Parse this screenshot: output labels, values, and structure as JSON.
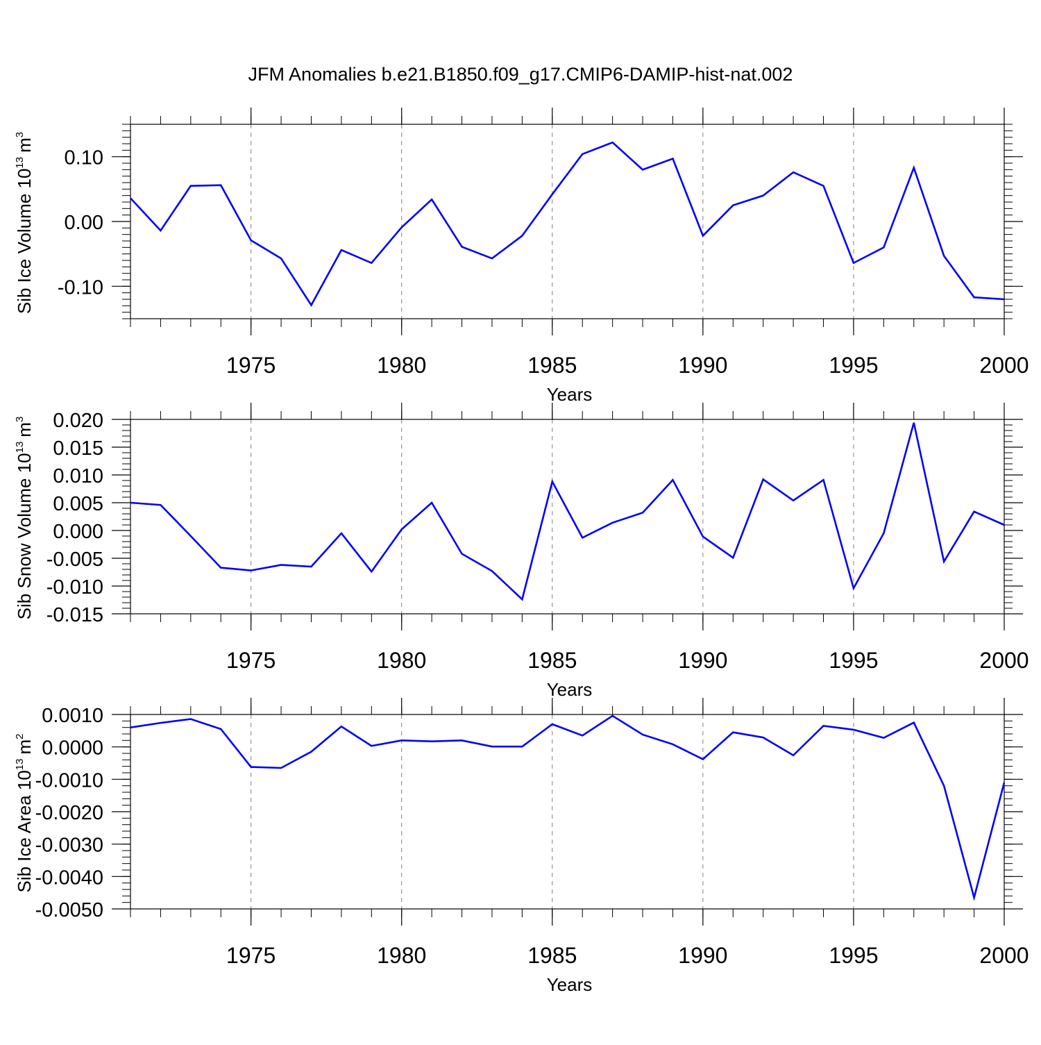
{
  "figure": {
    "title": "JFM Anomalies b.e21.B1850.f09_g17.CMIP6-DAMIP-hist-nat.002"
  },
  "colors": {
    "line": "#0000ff",
    "axis": "#000000",
    "grid": "#808080",
    "background": "#ffffff"
  },
  "chart_data": [
    {
      "type": "line",
      "title": "",
      "xlabel": "Years",
      "ylabel": "Sib Ice Volume 10",
      "ylabel_exponent": "13",
      "ylabel_unit": "m",
      "ylabel_unit_exponent": "3",
      "xlim": [
        1971,
        2000
      ],
      "ylim": [
        -0.15,
        0.15
      ],
      "xticks": [
        1975,
        1980,
        1985,
        1990,
        1995,
        2000
      ],
      "xtick_labels": [
        "1975",
        "1980",
        "1985",
        "1990",
        "1995",
        "2000"
      ],
      "yticks": [
        0.1,
        0.0,
        -0.1
      ],
      "ytick_labels": [
        "0.10",
        "0.00",
        "-0.10"
      ],
      "grid": "vertical dashed at major x ticks",
      "x": [
        1971,
        1972,
        1973,
        1974,
        1975,
        1976,
        1977,
        1978,
        1979,
        1980,
        1981,
        1982,
        1983,
        1984,
        1985,
        1986,
        1987,
        1988,
        1989,
        1990,
        1991,
        1992,
        1993,
        1994,
        1995,
        1996,
        1997,
        1998,
        1999,
        2000
      ],
      "series": [
        {
          "name": "Sib Ice Volume",
          "values": [
            0.036,
            -0.014,
            0.055,
            0.056,
            -0.029,
            -0.057,
            -0.129,
            -0.044,
            -0.064,
            -0.009,
            0.034,
            -0.039,
            -0.057,
            -0.022,
            0.042,
            0.104,
            0.122,
            0.08,
            0.097,
            -0.022,
            0.025,
            0.04,
            0.076,
            0.055,
            -0.064,
            -0.04,
            0.083,
            -0.053,
            -0.117,
            -0.12
          ]
        }
      ]
    },
    {
      "type": "line",
      "title": "",
      "xlabel": "Years",
      "ylabel": "Sib Snow Volume 10",
      "ylabel_exponent": "13",
      "ylabel_unit": "m",
      "ylabel_unit_exponent": "3",
      "xlim": [
        1971,
        2000
      ],
      "ylim": [
        -0.015,
        0.02
      ],
      "xticks": [
        1975,
        1980,
        1985,
        1990,
        1995,
        2000
      ],
      "xtick_labels": [
        "1975",
        "1980",
        "1985",
        "1990",
        "1995",
        "2000"
      ],
      "yticks": [
        0.02,
        0.015,
        0.01,
        0.005,
        0.0,
        -0.005,
        -0.01,
        -0.015
      ],
      "ytick_labels": [
        "0.020",
        "0.015",
        "0.010",
        "0.005",
        "0.000",
        "-0.005",
        "-0.010",
        "-0.015"
      ],
      "grid": "vertical dashed at major x ticks",
      "x": [
        1971,
        1972,
        1973,
        1974,
        1975,
        1976,
        1977,
        1978,
        1979,
        1980,
        1981,
        1982,
        1983,
        1984,
        1985,
        1986,
        1987,
        1988,
        1989,
        1990,
        1991,
        1992,
        1993,
        1994,
        1995,
        1996,
        1997,
        1998,
        1999,
        2000
      ],
      "series": [
        {
          "name": "Sib Snow Volume",
          "values": [
            0.005,
            0.0046,
            -0.001,
            -0.0067,
            -0.0072,
            -0.0062,
            -0.0065,
            -0.0005,
            -0.0074,
            0.0002,
            0.005,
            -0.0042,
            -0.0073,
            -0.0124,
            0.0088,
            -0.0013,
            0.0014,
            0.0032,
            0.0091,
            -0.0011,
            -0.0049,
            0.0092,
            0.0054,
            0.0091,
            -0.0104,
            -0.0005,
            0.0194,
            -0.0056,
            0.0034,
            0.001
          ]
        }
      ]
    },
    {
      "type": "line",
      "title": "",
      "xlabel": "Years",
      "ylabel": "Sib Ice Area 10",
      "ylabel_exponent": "13",
      "ylabel_unit": "m",
      "ylabel_unit_exponent": "2",
      "xlim": [
        1971,
        2000
      ],
      "ylim": [
        -0.005,
        0.001
      ],
      "xticks": [
        1975,
        1980,
        1985,
        1990,
        1995,
        2000
      ],
      "xtick_labels": [
        "1975",
        "1980",
        "1985",
        "1990",
        "1995",
        "2000"
      ],
      "yticks": [
        0.001,
        0.0,
        -0.001,
        -0.002,
        -0.003,
        -0.004,
        -0.005
      ],
      "ytick_labels": [
        "0.0010",
        "0.0000",
        "-0.0010",
        "-0.0020",
        "-0.0030",
        "-0.0040",
        "-0.0050"
      ],
      "grid": "vertical dashed at major x ticks",
      "x": [
        1971,
        1972,
        1973,
        1974,
        1975,
        1976,
        1977,
        1978,
        1979,
        1980,
        1981,
        1982,
        1983,
        1984,
        1985,
        1986,
        1987,
        1988,
        1989,
        1990,
        1991,
        1992,
        1993,
        1994,
        1995,
        1996,
        1997,
        1998,
        1999,
        2000
      ],
      "series": [
        {
          "name": "Sib Ice Area",
          "values": [
            0.0006,
            0.00074,
            0.00086,
            0.00055,
            -0.00062,
            -0.00065,
            -0.00015,
            0.00063,
            3e-05,
            0.0002,
            0.00017,
            0.0002,
            1e-05,
            1e-05,
            0.0007,
            0.00035,
            0.00096,
            0.00038,
            8e-05,
            -0.00038,
            0.00045,
            0.00029,
            -0.00026,
            0.00065,
            0.00053,
            0.00028,
            0.00075,
            -0.0012,
            -0.00465,
            -0.0011
          ]
        }
      ]
    }
  ]
}
